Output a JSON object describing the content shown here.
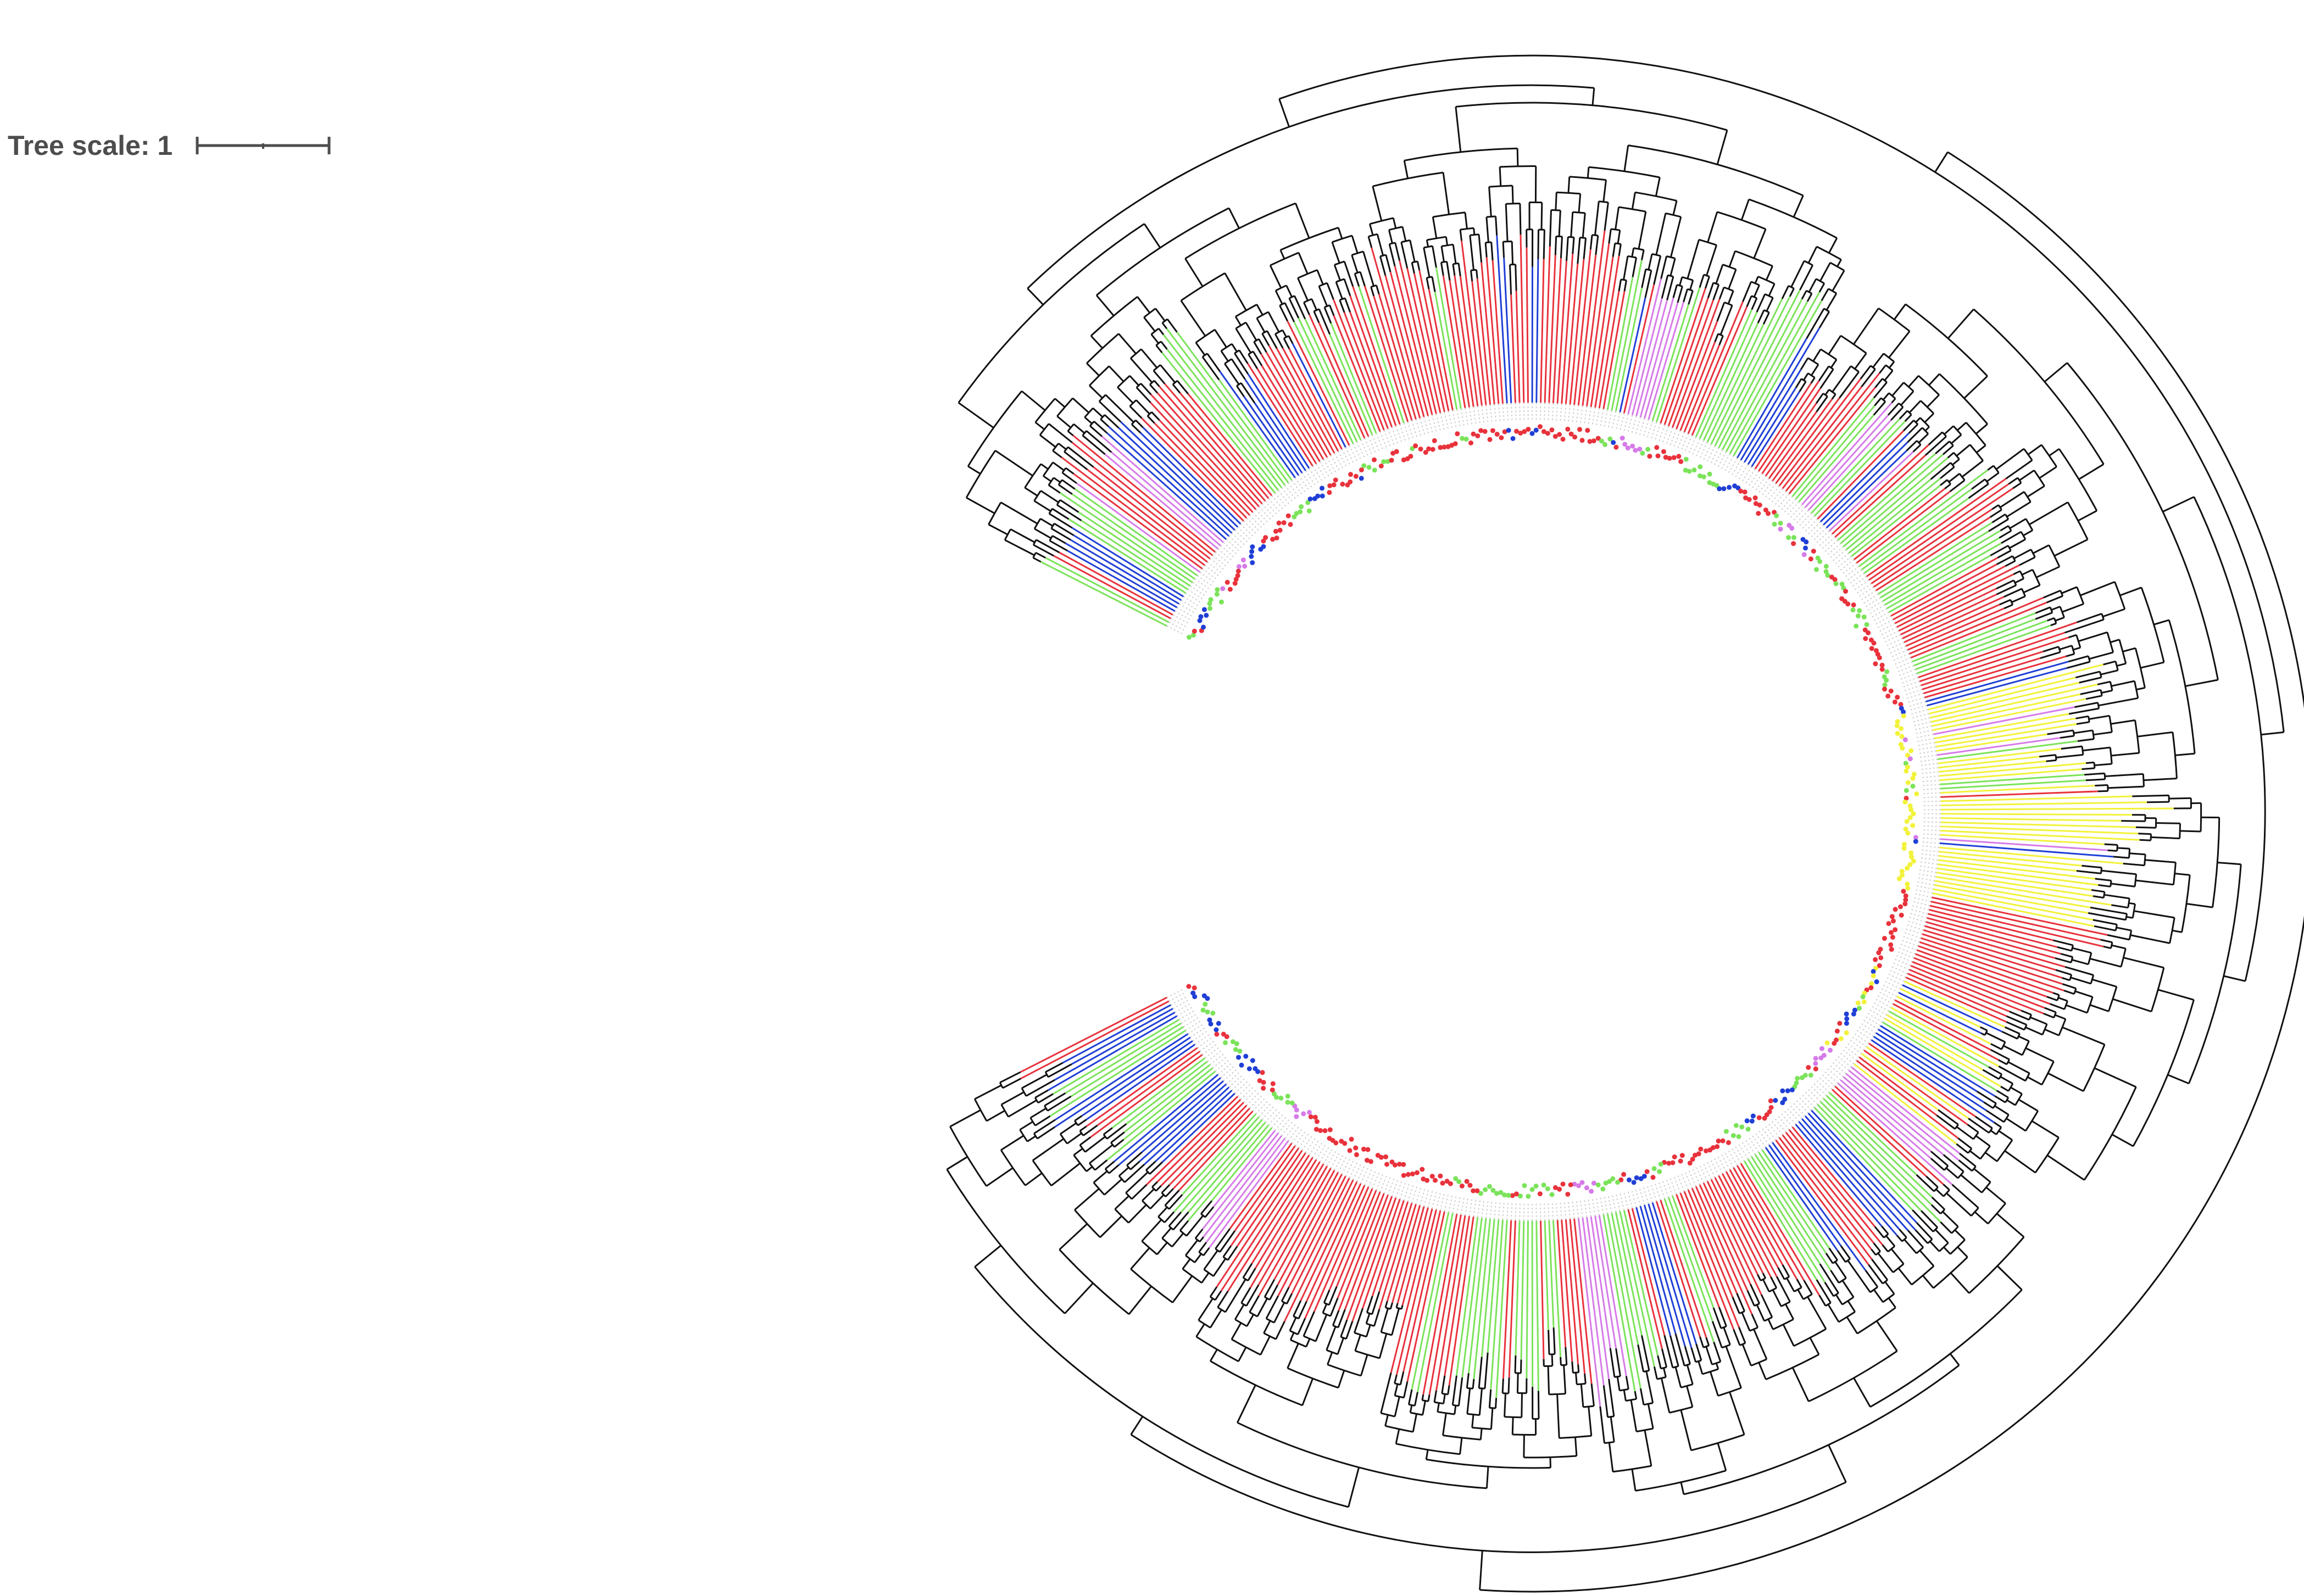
{
  "scale": {
    "label": "Tree scale: 1",
    "value": 1
  },
  "palette": {
    "internal": "#111111",
    "red": "#e8323c",
    "green": "#7be35a",
    "blue": "#1f3fd6",
    "violet": "#d67be8",
    "yellow": "#f2f23a",
    "label_text": "#9a9a9a"
  },
  "legend_note": ""
}
